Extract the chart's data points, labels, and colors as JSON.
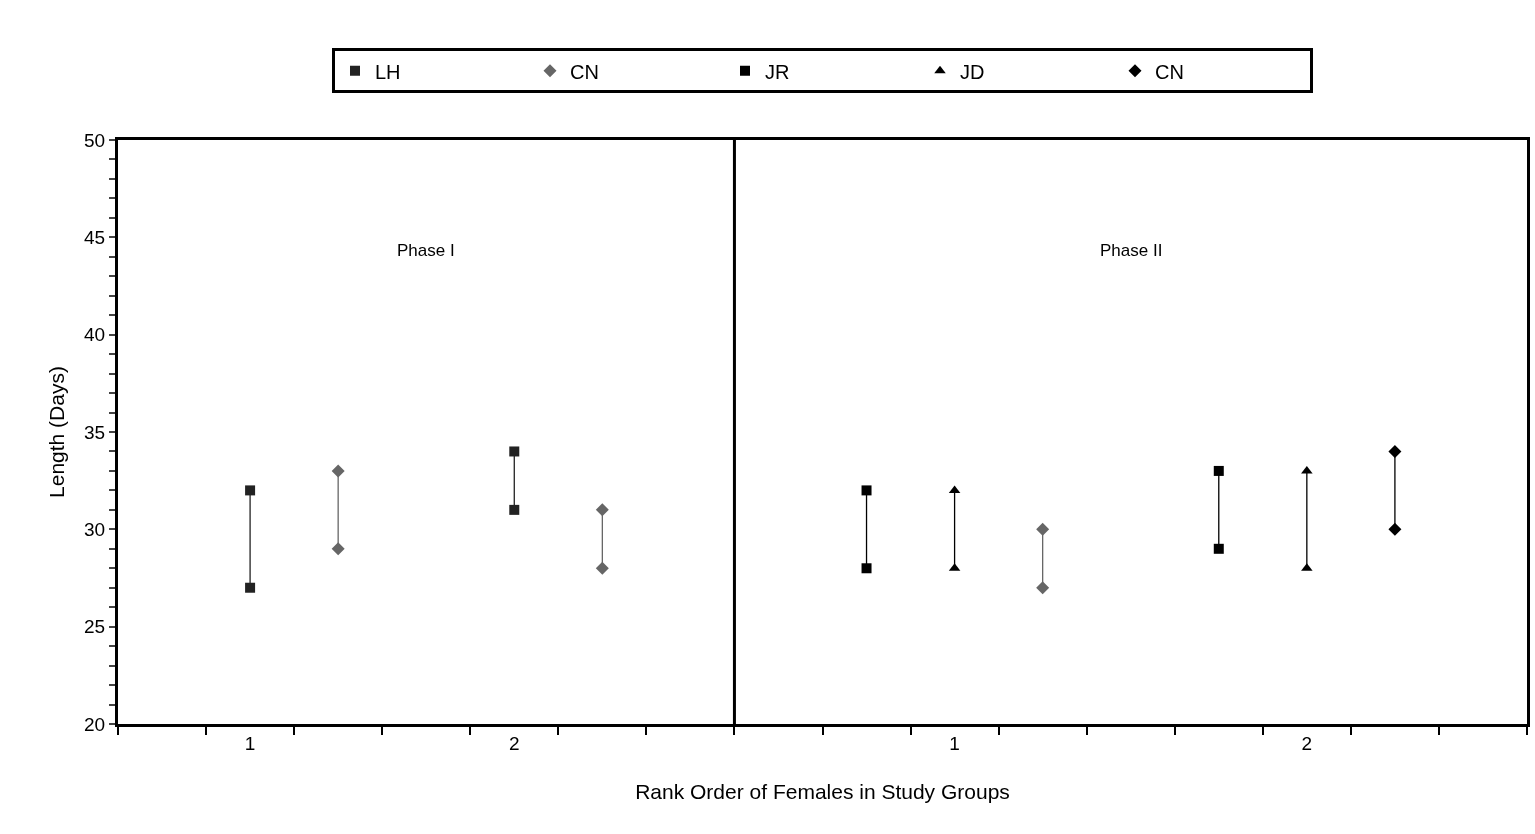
{
  "chart_data": {
    "type": "scatter",
    "xlabel": "Rank Order of Females in Study Groups",
    "ylabel": "Length (Days)",
    "annotations": [
      "Phase I",
      "Phase II"
    ],
    "categories": [
      null,
      "1",
      null,
      null,
      "2",
      null,
      null,
      null,
      null,
      "1",
      null,
      null,
      null,
      "2",
      null,
      null
    ],
    "series": [
      {
        "name": "LH",
        "color": "#222222",
        "marker": "square",
        "values": [
          null,
          32,
          null,
          null,
          34,
          null,
          null,
          null,
          null,
          null,
          null,
          null,
          null,
          null,
          null,
          null
        ]
      },
      {
        "color": "#222222",
        "marker": "square",
        "values": [
          null,
          27,
          null,
          null,
          31,
          null,
          null,
          null,
          null,
          null,
          null,
          null,
          null,
          null,
          null,
          null
        ]
      },
      {
        "name": "CN",
        "color": "#666666",
        "marker": "diamond",
        "values": [
          null,
          null,
          33,
          null,
          null,
          31,
          null,
          null,
          null,
          null,
          30,
          null,
          null,
          null,
          null,
          null
        ]
      },
      {
        "color": "#666666",
        "marker": "diamond",
        "values": [
          null,
          null,
          29,
          null,
          null,
          28,
          null,
          null,
          null,
          null,
          27,
          null,
          null,
          null,
          null,
          null
        ]
      },
      {
        "name": "JR",
        "color": "#000000",
        "marker": "square",
        "values": [
          null,
          null,
          null,
          null,
          null,
          null,
          null,
          null,
          32,
          null,
          null,
          null,
          33,
          null,
          null,
          null
        ]
      },
      {
        "color": "#000000",
        "marker": "square",
        "values": [
          null,
          null,
          null,
          null,
          null,
          null,
          null,
          null,
          28,
          null,
          null,
          null,
          29,
          null,
          null,
          null
        ]
      },
      {
        "name": "JD",
        "color": "#000000",
        "marker": "triangle",
        "values": [
          null,
          null,
          null,
          null,
          null,
          null,
          null,
          null,
          null,
          32,
          null,
          null,
          null,
          33,
          null,
          null
        ]
      },
      {
        "color": "#000000",
        "marker": "triangle",
        "values": [
          null,
          null,
          null,
          null,
          null,
          null,
          null,
          null,
          null,
          28,
          null,
          null,
          null,
          28,
          null,
          null
        ]
      },
      {
        "name": "CN",
        "color": "#000000",
        "marker": "diamond",
        "values": [
          null,
          null,
          null,
          null,
          null,
          null,
          null,
          null,
          null,
          null,
          null,
          null,
          null,
          null,
          34,
          null
        ]
      },
      {
        "color": "#000000",
        "marker": "diamond",
        "values": [
          null,
          null,
          null,
          null,
          null,
          null,
          null,
          null,
          null,
          null,
          null,
          null,
          null,
          null,
          30,
          null
        ]
      }
    ],
    "ylim": [
      20,
      50
    ],
    "yticks": [
      20,
      {
        "value": 21,
        "label": null
      },
      {
        "value": 22,
        "label": null
      },
      {
        "value": 23,
        "label": null
      },
      {
        "value": 24,
        "label": null
      },
      25,
      {
        "value": 26,
        "label": null
      },
      {
        "value": 27,
        "label": null
      },
      {
        "value": 28,
        "label": null
      },
      {
        "value": 29,
        "label": null
      },
      30,
      {
        "value": 31,
        "label": null
      },
      {
        "value": 32,
        "label": null
      },
      {
        "value": 33,
        "label": null
      },
      {
        "value": 34,
        "label": null
      },
      35,
      {
        "value": 36,
        "label": null
      },
      {
        "value": 37,
        "label": null
      },
      {
        "value": 38,
        "label": null
      },
      {
        "value": 39,
        "label": null
      },
      40,
      {
        "value": 41,
        "label": null
      },
      {
        "value": 42,
        "label": null
      },
      {
        "value": 43,
        "label": null
      },
      {
        "value": 44,
        "label": null
      },
      45,
      {
        "value": 46,
        "label": null
      },
      {
        "value": 47,
        "label": null
      },
      {
        "value": 48,
        "label": null
      },
      {
        "value": 49,
        "label": null
      },
      50
    ],
    "grid": false,
    "legend": "top"
  }
}
